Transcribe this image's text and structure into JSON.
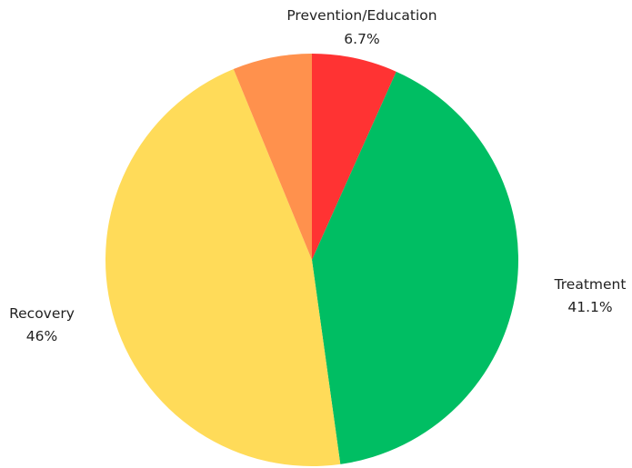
{
  "chart_data": {
    "type": "pie",
    "title": "",
    "slices": [
      {
        "label": "Prevention/Education",
        "value": 6.7,
        "value_label": "6.7%",
        "color": "#ff3333"
      },
      {
        "label": "Treatment",
        "value": 41.1,
        "value_label": "41.1%",
        "color": "#00be63"
      },
      {
        "label": "Recovery",
        "value": 46,
        "value_label": "46%",
        "color": "#ffdb59"
      },
      {
        "label": "",
        "value": 6.2,
        "value_label": "",
        "color": "#ff914d"
      }
    ],
    "start_angle": "12 o'clock",
    "direction": "clockwise",
    "legend": "none"
  }
}
